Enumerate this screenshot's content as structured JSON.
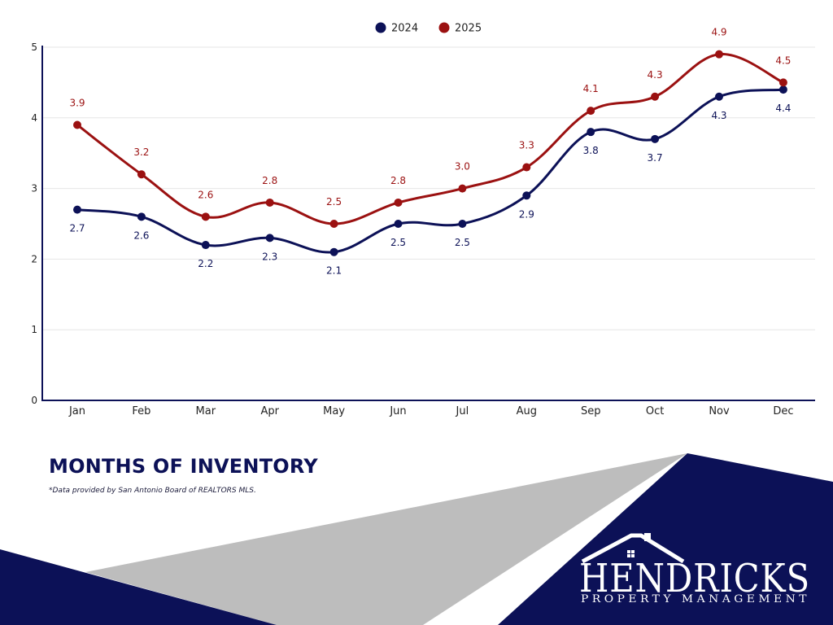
{
  "chart_data": {
    "type": "line",
    "title": "MONTHS OF INVENTORY",
    "categories": [
      "Jan",
      "Feb",
      "Mar",
      "Apr",
      "May",
      "Jun",
      "Jul",
      "Aug",
      "Sep",
      "Oct",
      "Nov",
      "Dec"
    ],
    "series": [
      {
        "name": "2024",
        "color": "#0c1157",
        "values": [
          2.7,
          2.6,
          2.2,
          2.3,
          2.1,
          2.5,
          2.5,
          2.9,
          3.8,
          3.7,
          4.3,
          4.4
        ],
        "labels": [
          "2.7",
          "2.6",
          "2.2",
          "2.3",
          "2.1",
          "2.5",
          "2.5",
          "2.9",
          "3.8",
          "3.7",
          "4.3",
          "4.4"
        ]
      },
      {
        "name": "2025",
        "color": "#9b1111",
        "values": [
          3.9,
          3.2,
          2.6,
          2.8,
          2.5,
          2.8,
          3.0,
          3.3,
          4.1,
          4.3,
          4.9,
          4.5
        ],
        "labels": [
          "3.9",
          "3.2",
          "2.6",
          "2.8",
          "2.5",
          "2.8",
          "3.0",
          "3.3",
          "4.1",
          "4.3",
          "4.9",
          "4.5"
        ]
      }
    ],
    "ylim": [
      0,
      5
    ],
    "yticks": [
      "0",
      "1",
      "2",
      "3",
      "4",
      "5"
    ],
    "grid": true,
    "legend": "top-center",
    "smooth": true
  },
  "footnote": "*Data provided by San Antonio Board of REALTORS MLS.",
  "logo": {
    "name": "HENDRICKS",
    "subtitle": "PROPERTY MANAGEMENT",
    "icon": "house-roof-icon"
  },
  "colors": {
    "navy": "#0c1157",
    "red": "#9b1111",
    "grey": "#bdbdbd"
  }
}
